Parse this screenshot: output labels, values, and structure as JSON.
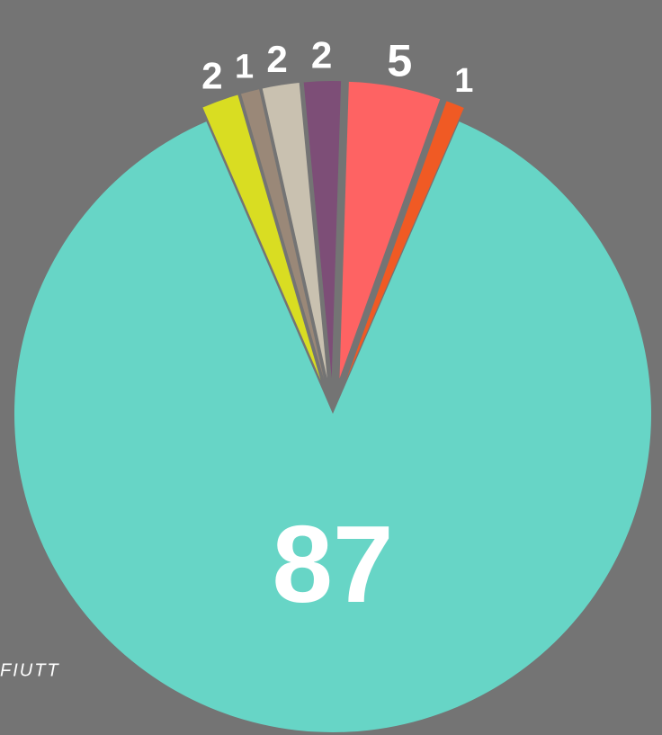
{
  "chart_data": {
    "type": "pie",
    "categories": [
      null,
      null,
      null,
      null,
      null,
      null,
      null
    ],
    "values": [
      2,
      1,
      2,
      2,
      5,
      1,
      87
    ],
    "colors": [
      "#d9dd22",
      "#9a8878",
      "#c9c1b0",
      "#7d4e77",
      "#fe6363",
      "#f05a24",
      "#67d5c6"
    ],
    "caption": "FIUTT"
  }
}
